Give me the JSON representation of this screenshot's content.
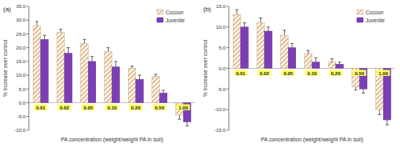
{
  "chart_data": [
    {
      "type": "bar",
      "title": "(a)",
      "categories": [
        "0.01",
        "0.02",
        "0.05",
        "0.10",
        "0.20",
        "0.50",
        "1.00"
      ],
      "series": [
        {
          "name": "Cocoon",
          "color": "#c99a63",
          "values": [
            28,
            25.5,
            21.5,
            18.5,
            12.5,
            9.5,
            -4.5
          ],
          "errors": [
            1.5,
            1.2,
            1.5,
            1.5,
            0.8,
            0.8,
            1.5
          ]
        },
        {
          "name": "Juvenile",
          "color": "#7a3fb5",
          "values": [
            23,
            18,
            15,
            13,
            8.5,
            3.5,
            -7
          ],
          "errors": [
            1.5,
            2,
            1.8,
            2,
            1.5,
            1,
            1.5
          ]
        }
      ],
      "x_label": "PA concentration (weight/weight PA in soil)",
      "y_label": "% Increase over control",
      "ylim": [
        -10,
        35
      ],
      "yticks": [
        {
          "value": -10,
          "label": "-10.0"
        },
        {
          "value": -5,
          "label": "-5.0"
        },
        {
          "value": 0,
          "label": "0.0"
        },
        {
          "value": 5,
          "label": "5.0"
        },
        {
          "value": 10,
          "label": "10.0"
        },
        {
          "value": 15,
          "label": "15.0"
        },
        {
          "value": 20,
          "label": "20.0"
        },
        {
          "value": 25,
          "label": "25.0"
        },
        {
          "value": 30,
          "label": "30.0"
        },
        {
          "value": 35,
          "label": "35.0"
        }
      ],
      "legend": "top-right",
      "grid": false
    },
    {
      "type": "bar",
      "title": "(b)",
      "categories": [
        "0.01",
        "0.02",
        "0.05",
        "0.10",
        "0.20",
        "0.50",
        "1.00"
      ],
      "series": [
        {
          "name": "Cocoon",
          "color": "#c99a63",
          "values": [
            13,
            11,
            8,
            3.5,
            1.5,
            -4.5,
            -10
          ],
          "errors": [
            1.2,
            1.2,
            1.2,
            0.8,
            0.8,
            0.8,
            1.2
          ]
        },
        {
          "name": "Juvenile",
          "color": "#7a3fb5",
          "values": [
            10,
            9,
            5,
            1.5,
            1,
            -5,
            -12.5
          ],
          "errors": [
            1,
            1,
            1,
            1,
            0.5,
            1,
            1.2
          ]
        }
      ],
      "x_label": "PA concentration (weight/weight PA in soil)",
      "y_label": "% Increase over control",
      "ylim": [
        -15,
        15
      ],
      "yticks": [
        {
          "value": -15,
          "label": "-15.0"
        },
        {
          "value": -10,
          "label": "-10.0"
        },
        {
          "value": -5,
          "label": "-5.0"
        },
        {
          "value": 0,
          "label": "0.0"
        },
        {
          "value": 5,
          "label": "5.0"
        },
        {
          "value": 10,
          "label": "10.0"
        },
        {
          "value": 15,
          "label": "15.0"
        }
      ],
      "legend": "top-right",
      "grid": false
    }
  ]
}
